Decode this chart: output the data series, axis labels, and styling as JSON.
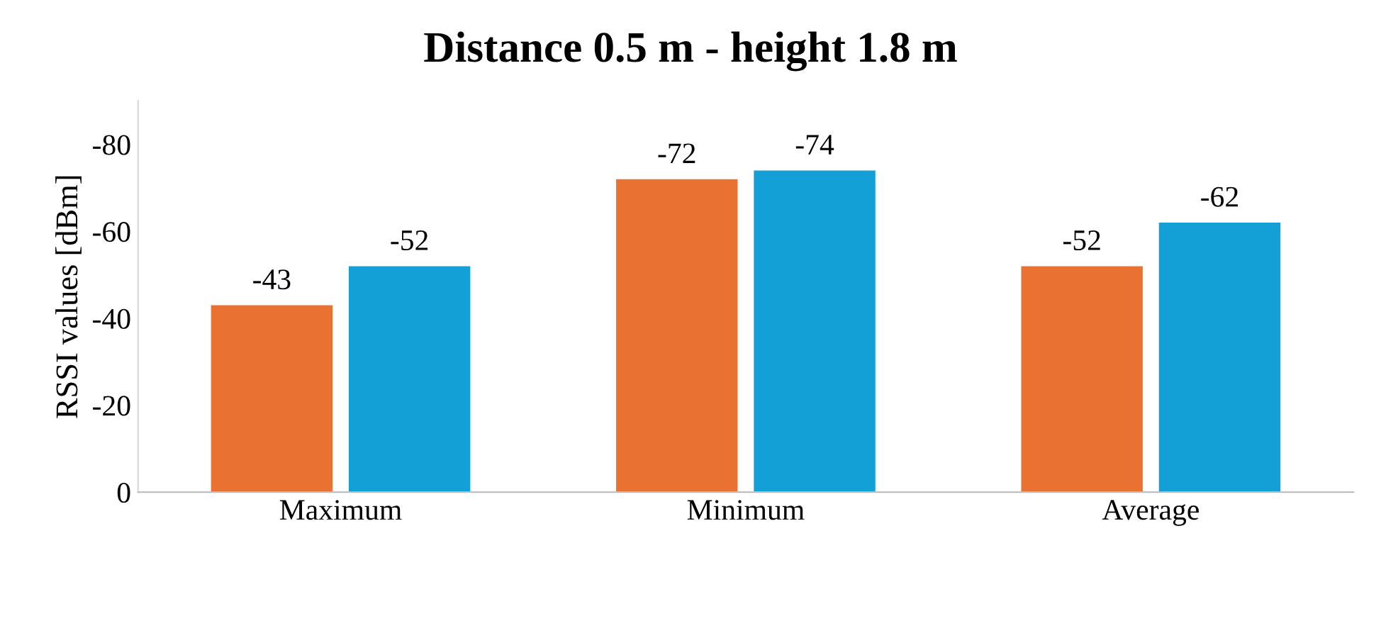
{
  "chart_data": {
    "type": "bar",
    "title": "Distance 0.5 m - height 1.8 m",
    "ylabel": "RSSI values [dBm]",
    "categories": [
      "Maximum",
      "Minimum",
      "Average"
    ],
    "series": [
      {
        "color": "#e97132",
        "values": [
          -43,
          -72,
          -52
        ]
      },
      {
        "color": "#12a0d7",
        "values": [
          -52,
          -74,
          -62
        ]
      }
    ],
    "ylim": [
      0,
      -90
    ],
    "yticks": [
      0,
      -20,
      -40,
      -60,
      -80
    ],
    "data_labels": true,
    "grid": false
  }
}
